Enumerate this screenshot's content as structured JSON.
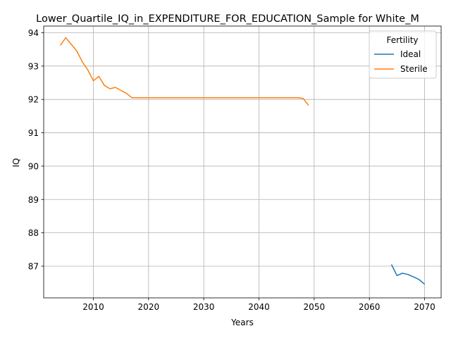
{
  "chart_data": {
    "type": "line",
    "title": "Lower_Quartile_IQ_in_EXPENDITURE_FOR_EDUCATION_Sample for White_M",
    "xlabel": "Years",
    "ylabel": "IQ",
    "xlim": [
      2001,
      2073
    ],
    "ylim": [
      86.05,
      94.2
    ],
    "xticks": [
      2010,
      2020,
      2030,
      2040,
      2050,
      2060,
      2070
    ],
    "yticks": [
      87,
      88,
      89,
      90,
      91,
      92,
      93,
      94
    ],
    "grid": true,
    "legend": {
      "title": "Fertility",
      "placement": "top-right"
    },
    "series": [
      {
        "name": "Ideal",
        "color": "#1f77b4",
        "x": [
          2064,
          2065,
          2066,
          2067,
          2068,
          2069,
          2070
        ],
        "y": [
          87.05,
          86.72,
          86.79,
          86.75,
          86.68,
          86.6,
          86.46
        ]
      },
      {
        "name": "Sterile",
        "color": "#ff7f0e",
        "x": [
          2004,
          2005,
          2006,
          2007,
          2008,
          2009,
          2010,
          2011,
          2012,
          2013,
          2014,
          2015,
          2016,
          2017,
          2018,
          2019,
          2020,
          2025,
          2030,
          2035,
          2040,
          2045,
          2047,
          2048,
          2049
        ],
        "y": [
          93.62,
          93.85,
          93.65,
          93.45,
          93.13,
          92.88,
          92.56,
          92.69,
          92.42,
          92.32,
          92.36,
          92.27,
          92.18,
          92.05,
          92.05,
          92.05,
          92.05,
          92.05,
          92.05,
          92.05,
          92.05,
          92.05,
          92.05,
          92.03,
          91.82
        ]
      }
    ]
  }
}
